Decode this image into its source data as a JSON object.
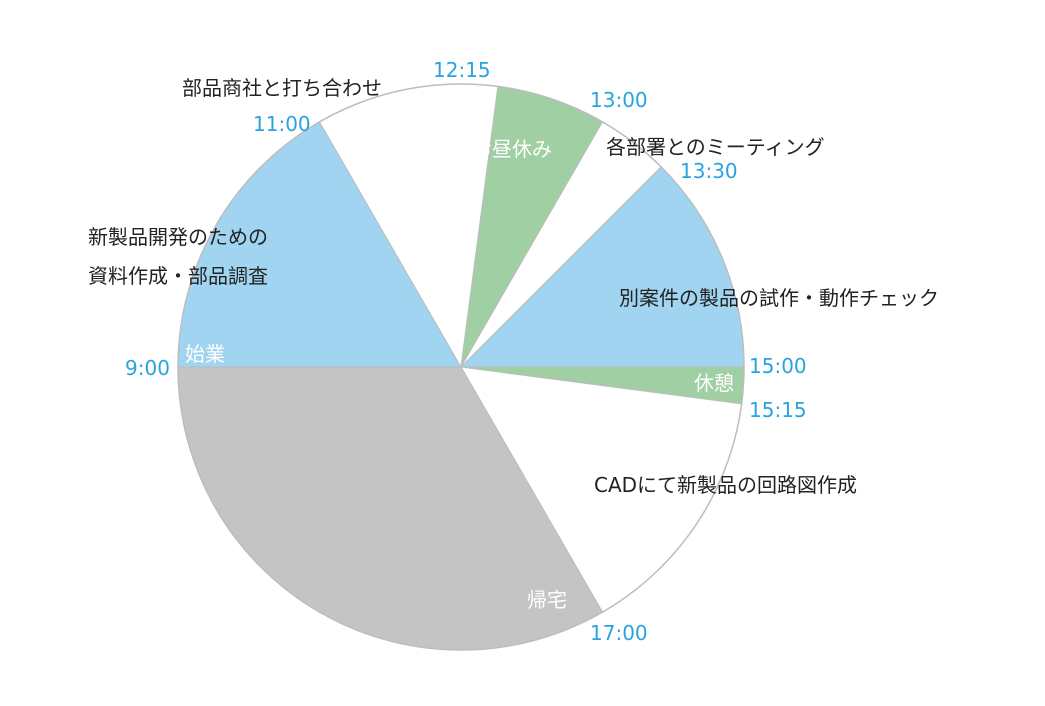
{
  "chart_data": {
    "type": "pie",
    "title": "",
    "start_time": "9:00",
    "end_time": "17:00",
    "slices": [
      {
        "label": "始業",
        "start": "9:00",
        "end": "11:00",
        "hours": 2.0,
        "color": "#a0d4f0"
      },
      {
        "label": "新製品開発のための資料作成・部品調査",
        "start": "9:00",
        "end": "11:00",
        "hours": 2.0,
        "color": "#a0d4f0"
      },
      {
        "label": "部品商社と打ち合わせ",
        "start": "11:00",
        "end": "12:15",
        "hours": 1.25,
        "color": "#ffffff"
      },
      {
        "label": "お昼休み",
        "start": "12:15",
        "end": "13:00",
        "hours": 0.75,
        "color": "#9fcfa2"
      },
      {
        "label": "各部署とのミーティング",
        "start": "13:00",
        "end": "13:30",
        "hours": 0.5,
        "color": "#ffffff"
      },
      {
        "label": "別案件の製品の試作・動作チェック",
        "start": "13:30",
        "end": "15:00",
        "hours": 1.5,
        "color": "#a0d4f0"
      },
      {
        "label": "休憩",
        "start": "15:00",
        "end": "15:15",
        "hours": 0.25,
        "color": "#9fcfa2"
      },
      {
        "label": "CADにて新製品の回路図作成",
        "start": "15:15",
        "end": "17:00",
        "hours": 1.75,
        "color": "#ffffff"
      },
      {
        "label": "帰宅",
        "start": "17:00",
        "end": "9:00",
        "hours": 16.0,
        "color": "#c4c4c4"
      }
    ],
    "time_labels": [
      "9:00",
      "11:00",
      "12:15",
      "13:00",
      "13:30",
      "15:00",
      "15:15",
      "17:00"
    ],
    "time_label_color": "#29a3e0",
    "legend": "none"
  },
  "labels": {
    "inner": {
      "start": "始業",
      "lunch": "お昼休み",
      "break": "休憩",
      "home": "帰宅"
    },
    "outer": {
      "meeting_vendor": "部品商社と打ち合わせ",
      "research_line1": "新製品開発のための",
      "research_line2": "資料作成・部品調査",
      "dept_meeting": "各部署とのミーティング",
      "prototype": "別案件の製品の試作・動作チェック",
      "cad": "CADにて新製品の回路図作成"
    },
    "times": {
      "t0900": "9:00",
      "t1100": "11:00",
      "t1215": "12:15",
      "t1300": "13:00",
      "t1330": "13:30",
      "t1500": "15:00",
      "t1515": "15:15",
      "t1700": "17:00"
    }
  }
}
